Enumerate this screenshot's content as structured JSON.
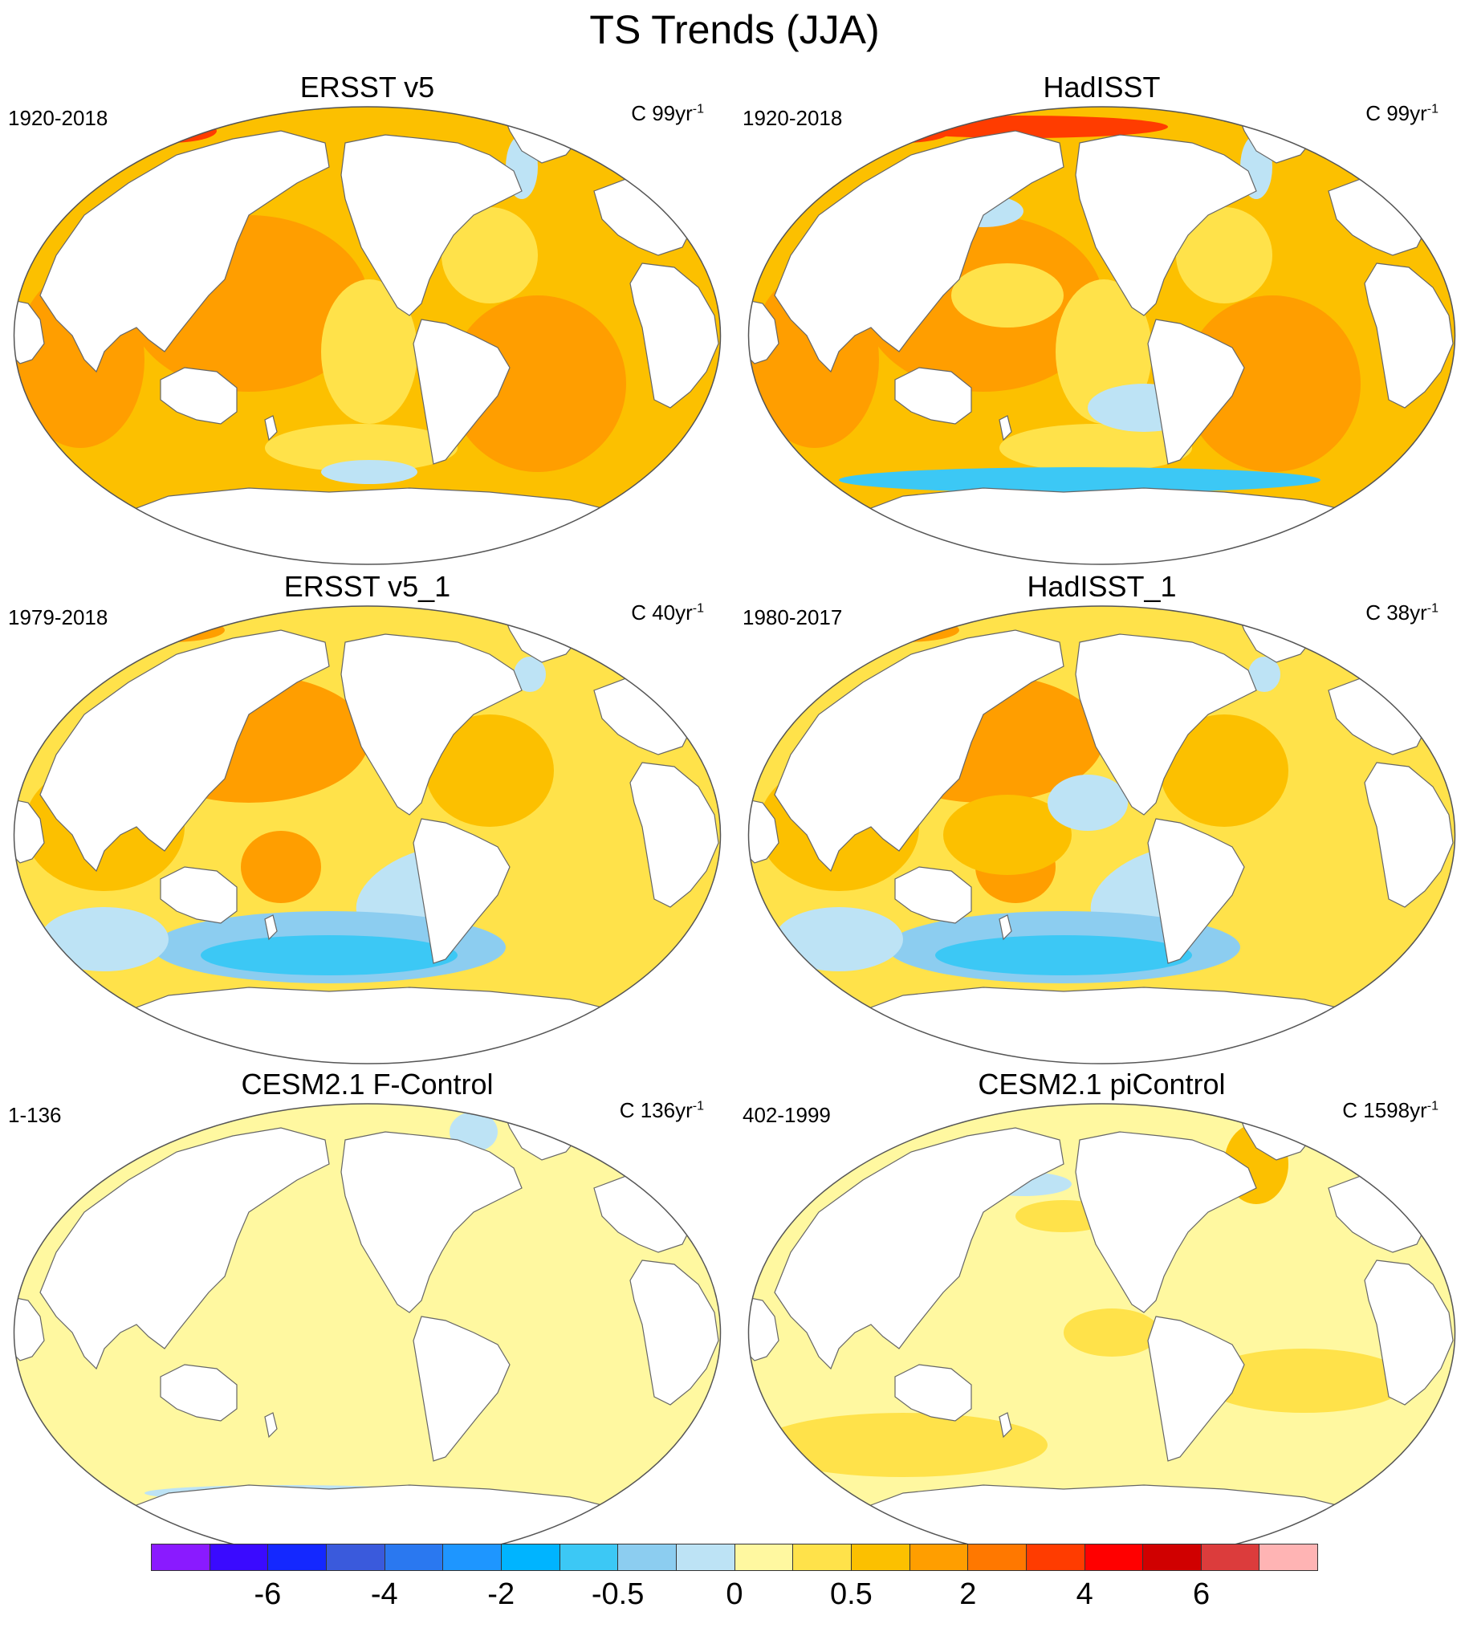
{
  "title": "TS Trends (JJA)",
  "panels": [
    {
      "title": "ERSST v5",
      "period": "1920-2018",
      "units": "C 99yr",
      "units_exp": "-1",
      "pattern": "warm"
    },
    {
      "title": "HadISST",
      "period": "1920-2018",
      "units": "C 99yr",
      "units_exp": "-1",
      "pattern": "warm_noisy"
    },
    {
      "title": "ERSST v5_1",
      "period": "1979-2018",
      "units": "C 40yr",
      "units_exp": "-1",
      "pattern": "recent"
    },
    {
      "title": "HadISST_1",
      "period": "1980-2017",
      "units": "C 38yr",
      "units_exp": "-1",
      "pattern": "recent_noisy"
    },
    {
      "title": "CESM2.1 F-Control",
      "period": "1-136",
      "units": "C 136yr",
      "units_exp": "-1",
      "pattern": "neutral"
    },
    {
      "title": "CESM2.1 piControl",
      "period": "402-1999",
      "units": "C 1598yr",
      "units_exp": "-1",
      "pattern": "neutral_warm"
    }
  ],
  "colorbar": {
    "colors": [
      "#8a1aff",
      "#3a0aff",
      "#1428ff",
      "#3a5adc",
      "#2a78f0",
      "#1e96ff",
      "#00b4ff",
      "#3cc8f5",
      "#8ccdf0",
      "#bde3f5",
      "#fff8a0",
      "#ffe24a",
      "#fcc000",
      "#ff9e00",
      "#ff7800",
      "#ff3c00",
      "#ff0000",
      "#d00000",
      "#dc3c3c",
      "#ffb4b4"
    ],
    "labels": [
      "-6",
      "-4",
      "-2",
      "-0.5",
      "0",
      "0.5",
      "2",
      "4",
      "6"
    ],
    "label_boundaries": [
      1,
      3,
      5,
      7,
      9,
      11,
      13,
      15,
      17
    ]
  }
}
